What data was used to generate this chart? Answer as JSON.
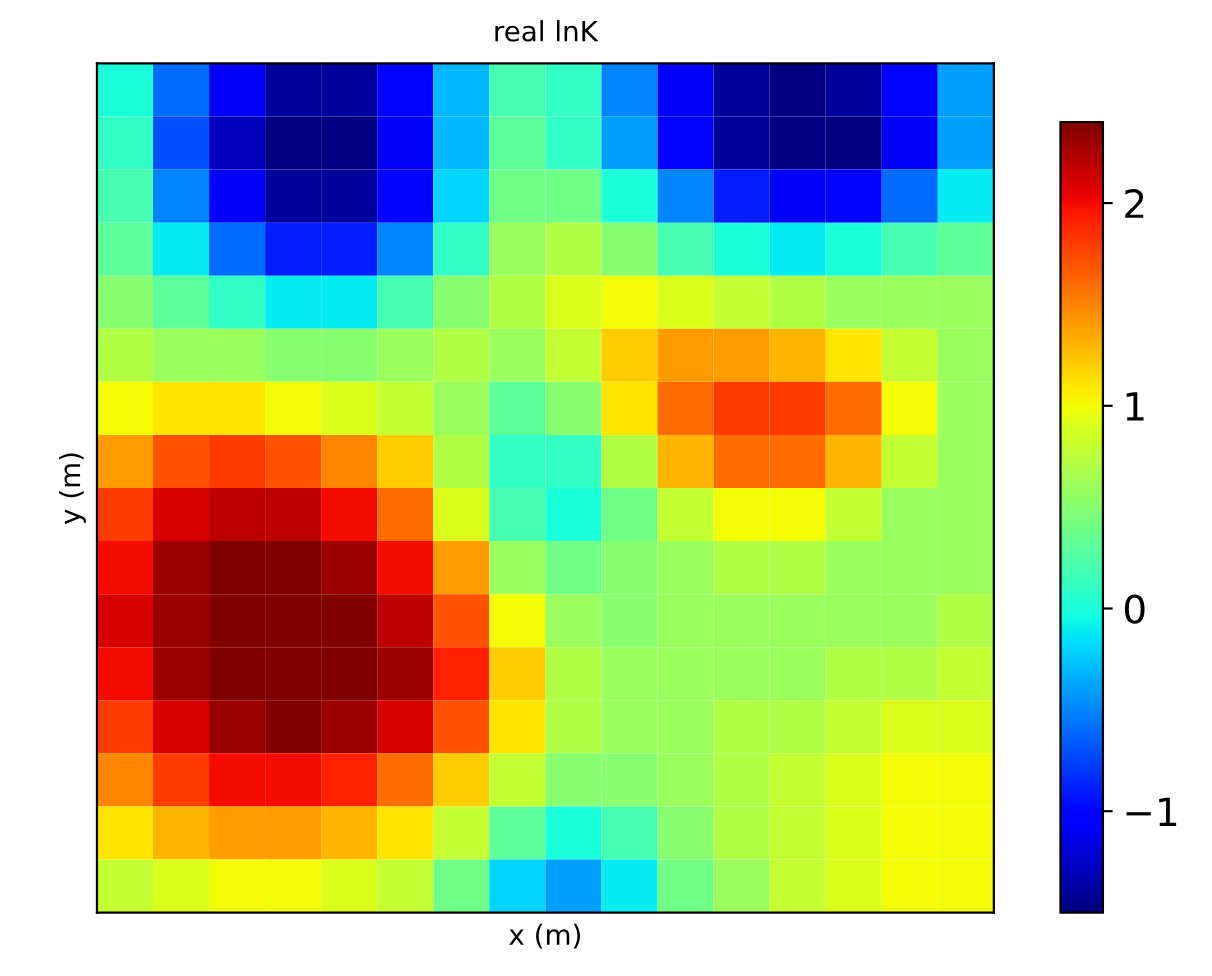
{
  "chart_data": {
    "type": "heatmap",
    "title": "real lnK",
    "xlabel": "x (m)",
    "ylabel": "y (m)",
    "categories": [
      null,
      null,
      null,
      null,
      null,
      null,
      null,
      null,
      null,
      null,
      null,
      null,
      null,
      null,
      null,
      null
    ],
    "y_categories": [
      null,
      null,
      null,
      null,
      null,
      null,
      null,
      null,
      null,
      null,
      null,
      null,
      null,
      null,
      null,
      null
    ],
    "tick_labels": false,
    "clim": [
      -1.5,
      2.4
    ],
    "cticks": [
      {
        "value": -1,
        "label": "−1"
      },
      0,
      1,
      2
    ],
    "cells": [
      [
        0.0,
        -0.6,
        -1.1,
        -1.4,
        -1.4,
        -1.0,
        -0.3,
        0.2,
        0.1,
        -0.5,
        -1.1,
        -1.4,
        -1.5,
        -1.4,
        -1.0,
        -0.4
      ],
      [
        0.1,
        -0.7,
        -1.3,
        -1.5,
        -1.5,
        -1.1,
        -0.3,
        0.3,
        0.1,
        -0.4,
        -1.0,
        -1.4,
        -1.5,
        -1.5,
        -1.1,
        -0.4
      ],
      [
        0.2,
        -0.5,
        -1.1,
        -1.4,
        -1.4,
        -1.0,
        -0.2,
        0.4,
        0.4,
        0.0,
        -0.5,
        -0.9,
        -1.1,
        -1.0,
        -0.6,
        -0.1
      ],
      [
        0.3,
        -0.1,
        -0.6,
        -0.9,
        -0.9,
        -0.5,
        0.1,
        0.6,
        0.7,
        0.5,
        0.2,
        0.0,
        -0.1,
        0.0,
        0.2,
        0.3
      ],
      [
        0.5,
        0.3,
        0.1,
        -0.1,
        -0.1,
        0.2,
        0.5,
        0.7,
        0.9,
        1.0,
        0.9,
        0.8,
        0.7,
        0.6,
        0.6,
        0.6
      ],
      [
        0.7,
        0.6,
        0.6,
        0.5,
        0.5,
        0.6,
        0.7,
        0.6,
        0.8,
        1.2,
        1.4,
        1.4,
        1.3,
        1.1,
        0.8,
        0.6
      ],
      [
        1.0,
        1.1,
        1.1,
        1.0,
        0.9,
        0.8,
        0.6,
        0.3,
        0.5,
        1.1,
        1.6,
        1.8,
        1.8,
        1.6,
        1.0,
        0.6
      ],
      [
        1.4,
        1.7,
        1.8,
        1.7,
        1.5,
        1.2,
        0.7,
        0.1,
        0.1,
        0.7,
        1.3,
        1.6,
        1.6,
        1.3,
        0.8,
        0.6
      ],
      [
        1.8,
        2.1,
        2.2,
        2.2,
        2.0,
        1.6,
        0.9,
        0.2,
        0.0,
        0.4,
        0.8,
        1.0,
        1.0,
        0.8,
        0.6,
        0.6
      ],
      [
        2.0,
        2.3,
        2.4,
        2.4,
        2.3,
        2.0,
        1.4,
        0.6,
        0.4,
        0.5,
        0.6,
        0.7,
        0.7,
        0.6,
        0.6,
        0.6
      ],
      [
        2.1,
        2.3,
        2.4,
        2.4,
        2.4,
        2.2,
        1.7,
        1.0,
        0.6,
        0.5,
        0.6,
        0.6,
        0.6,
        0.6,
        0.6,
        0.7
      ],
      [
        2.0,
        2.3,
        2.4,
        2.4,
        2.4,
        2.3,
        1.9,
        1.2,
        0.7,
        0.6,
        0.6,
        0.6,
        0.6,
        0.7,
        0.7,
        0.8
      ],
      [
        1.8,
        2.1,
        2.3,
        2.4,
        2.3,
        2.1,
        1.7,
        1.1,
        0.7,
        0.6,
        0.6,
        0.7,
        0.7,
        0.8,
        0.9,
        0.9
      ],
      [
        1.5,
        1.8,
        2.0,
        2.0,
        1.9,
        1.6,
        1.2,
        0.8,
        0.5,
        0.5,
        0.6,
        0.7,
        0.8,
        0.9,
        1.0,
        1.0
      ],
      [
        1.1,
        1.3,
        1.4,
        1.4,
        1.3,
        1.1,
        0.8,
        0.3,
        0.0,
        0.2,
        0.5,
        0.7,
        0.8,
        0.9,
        1.0,
        1.0
      ],
      [
        0.8,
        0.9,
        1.0,
        1.0,
        0.9,
        0.8,
        0.4,
        -0.2,
        -0.4,
        -0.1,
        0.4,
        0.6,
        0.8,
        0.9,
        1.0,
        1.0
      ]
    ]
  }
}
